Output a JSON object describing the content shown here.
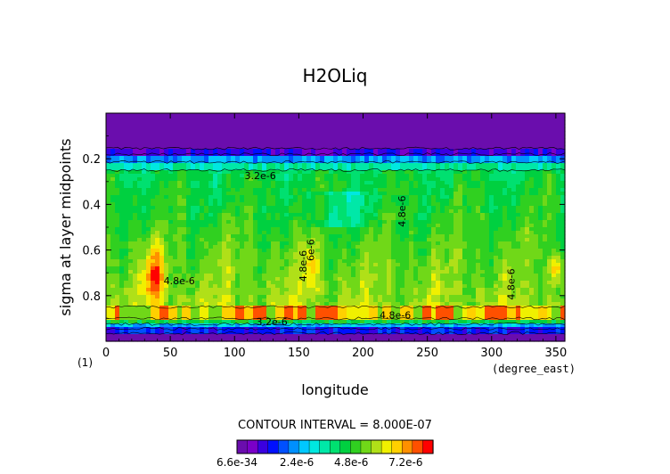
{
  "chart_data": {
    "type": "heatmap",
    "title": "H2OLiq",
    "xlabel": "longitude",
    "ylabel": "sigma at layer midpoints",
    "x_units": "(degree_east)",
    "panel_label": "(1)",
    "xlim": [
      0,
      357
    ],
    "ylim": [
      1.0,
      0.0
    ],
    "x_ticks": [
      "0",
      "50",
      "100",
      "150",
      "200",
      "250",
      "300",
      "350"
    ],
    "y_ticks": [
      "0.2",
      "0.4",
      "0.6",
      "0.8"
    ],
    "contour_interval_text": "CONTOUR INTERVAL = 8.000E-07",
    "contour_labels": [
      {
        "text": "3.2e-6",
        "lon": 120,
        "sigma": 0.29
      },
      {
        "text": "4.8e-6",
        "lon": 57,
        "sigma": 0.75
      },
      {
        "text": "6e-6",
        "lon": 162,
        "sigma": 0.6
      },
      {
        "text": "4.8e-6",
        "lon": 156,
        "sigma": 0.67
      },
      {
        "text": "4.8e-6",
        "lon": 225,
        "sigma": 0.9
      },
      {
        "text": "3.2e-6",
        "lon": 129,
        "sigma": 0.93
      },
      {
        "text": "4.8e-6",
        "lon": 318,
        "sigma": 0.75
      },
      {
        "text": "4.8e-6",
        "lon": 233,
        "sigma": 0.43
      }
    ],
    "colorbar": {
      "tick_labels": [
        "6.6e-34",
        "2.4e-6",
        "4.8e-6",
        "7.2e-6"
      ],
      "colors": [
        "#6a0dad",
        "#7a00c8",
        "#3a00e0",
        "#0010ff",
        "#0050ff",
        "#0090ff",
        "#00c8ff",
        "#00e8e0",
        "#00e8a8",
        "#00e070",
        "#00d040",
        "#30d020",
        "#70d818",
        "#b0e018",
        "#f0f000",
        "#ffd000",
        "#ff9000",
        "#ff5000",
        "#ff0000"
      ]
    },
    "colormap": [
      "#6a0dad",
      "#7a00c8",
      "#3a00e0",
      "#0010ff",
      "#0050ff",
      "#0090ff",
      "#00c8ff",
      "#00e8e0",
      "#00e8a8",
      "#00e070",
      "#00d040",
      "#30d020",
      "#70d818",
      "#b0e018",
      "#f0f000",
      "#ffd000",
      "#ff9000",
      "#ff5000",
      "#ff0000"
    ]
  }
}
